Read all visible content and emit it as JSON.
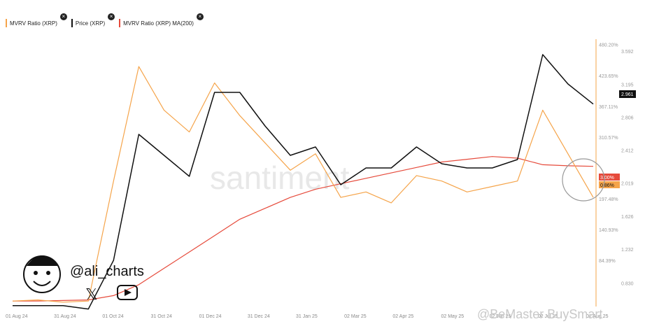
{
  "legend": [
    {
      "label": "MVRV Ratio (XRP)",
      "color": "#f5a44a"
    },
    {
      "label": "Price (XRP)",
      "color": "#111111"
    },
    {
      "label": "MVRV Ratio (XRP) MA(200)",
      "color": "#e64a3b"
    }
  ],
  "watermark": "santiment",
  "handle": "@ali_charts",
  "brand": "@BeMaster BuySmart",
  "badges": {
    "price_current": "2.961",
    "mvrv_current": "0.86%",
    "ma_current": "3.00%"
  },
  "colors": {
    "mvrv": "#f5a44a",
    "price": "#111111",
    "ma": "#e64a3b"
  },
  "chart_data": {
    "type": "line",
    "title": "",
    "x_ticks": [
      "01 Aug 24",
      "31 Aug 24",
      "01 Oct 24",
      "31 Oct 24",
      "01 Dec 24",
      "31 Dec 24",
      "31 Jan 25",
      "02 Mar 25",
      "02 Apr 25",
      "02 May 25",
      "02 Jun 25",
      "02 Jul 25",
      "02 Aug 25"
    ],
    "x": [
      "01 Aug 24",
      "31 Aug 24",
      "01 Oct 24",
      "31 Oct 24",
      "15 Nov 24",
      "03 Dec 24",
      "16 Dec 24",
      "31 Dec 24",
      "15 Jan 25",
      "31 Jan 25",
      "15 Feb 25",
      "02 Mar 25",
      "15 Mar 25",
      "02 Apr 25",
      "15 Apr 25",
      "02 May 25",
      "15 May 25",
      "02 Jun 25",
      "15 Jun 25",
      "02 Jul 25",
      "15 Jul 25",
      "25 Jul 25",
      "02 Aug 25",
      "10 Aug 25"
    ],
    "y_left_ticks": [
      "3.592",
      "3.195",
      "2.806",
      "2.412",
      "2.019",
      "1.626",
      "1.232",
      "0.830"
    ],
    "y_right_ticks": [
      "480.20%",
      "423.65%",
      "367.11%",
      "310.57%",
      "197.48%",
      "140.93%",
      "84.39%"
    ],
    "series": [
      {
        "name": "MVRV Ratio (XRP)",
        "axis": "right",
        "values": [
          10,
          12,
          8,
          10,
          230,
          440,
          360,
          320,
          410,
          350,
          300,
          250,
          280,
          200,
          210,
          190,
          240,
          230,
          210,
          220,
          230,
          360,
          280,
          200
        ]
      },
      {
        "name": "Price (XRP)",
        "axis": "left",
        "values": [
          0.56,
          0.56,
          0.56,
          0.52,
          1.1,
          2.6,
          2.35,
          2.1,
          3.1,
          3.1,
          2.7,
          2.35,
          2.45,
          2.0,
          2.2,
          2.2,
          2.45,
          2.25,
          2.2,
          2.2,
          2.3,
          3.55,
          3.2,
          2.961
        ]
      },
      {
        "name": "MVRV Ratio (XRP) MA(200)",
        "axis": "right",
        "values": [
          10,
          10,
          11,
          12,
          20,
          40,
          70,
          100,
          130,
          160,
          180,
          200,
          215,
          225,
          235,
          245,
          255,
          265,
          270,
          275,
          272,
          260,
          258,
          257
        ]
      }
    ],
    "grid": false,
    "legend_position": "top-left"
  }
}
